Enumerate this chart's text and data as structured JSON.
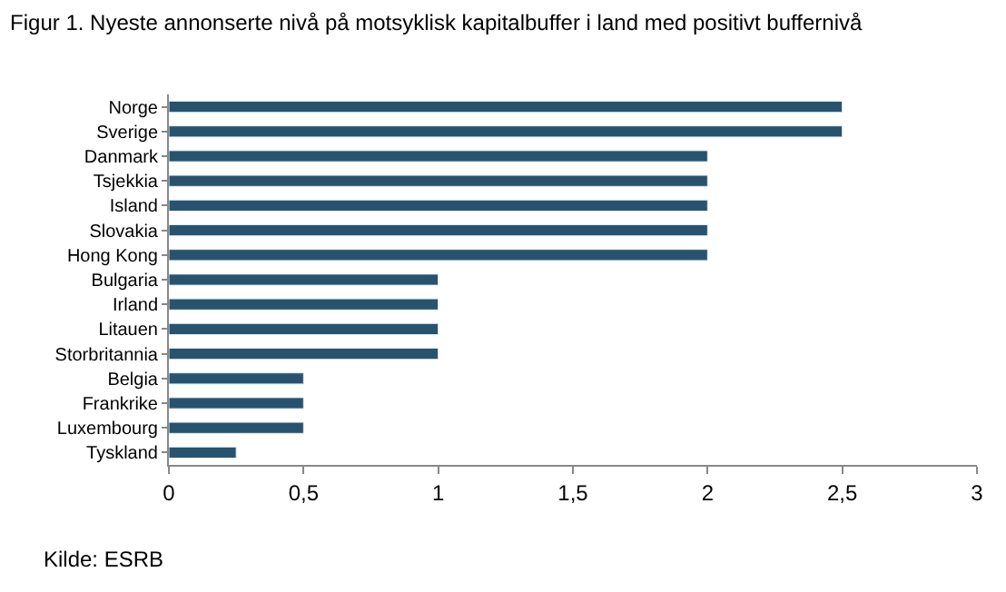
{
  "chart_data": {
    "type": "bar",
    "orientation": "horizontal",
    "title": "Figur 1. Nyeste annonserte nivå på motsyklisk kapitalbuffer i land med positivt buffernivå",
    "categories": [
      "Norge",
      "Sverige",
      "Danmark",
      "Tsjekkia",
      "Island",
      "Slovakia",
      "Hong Kong",
      "Bulgaria",
      "Irland",
      "Litauen",
      "Storbritannia",
      "Belgia",
      "Frankrike",
      "Luxembourg",
      "Tyskland"
    ],
    "values": [
      2.5,
      2.5,
      2,
      2,
      2,
      2,
      2,
      1,
      1,
      1,
      1,
      0.5,
      0.5,
      0.5,
      0.25
    ],
    "color": "#28536f",
    "xlim": [
      0,
      3
    ],
    "xticks": [
      0,
      {
        "value": 0.5,
        "label": "0,5"
      },
      1,
      {
        "value": 1.5,
        "label": "1,5"
      },
      2,
      {
        "value": 2.5,
        "label": "2,5"
      },
      3
    ],
    "legend": false,
    "annotations": [
      "Kilde: ESRB"
    ]
  }
}
